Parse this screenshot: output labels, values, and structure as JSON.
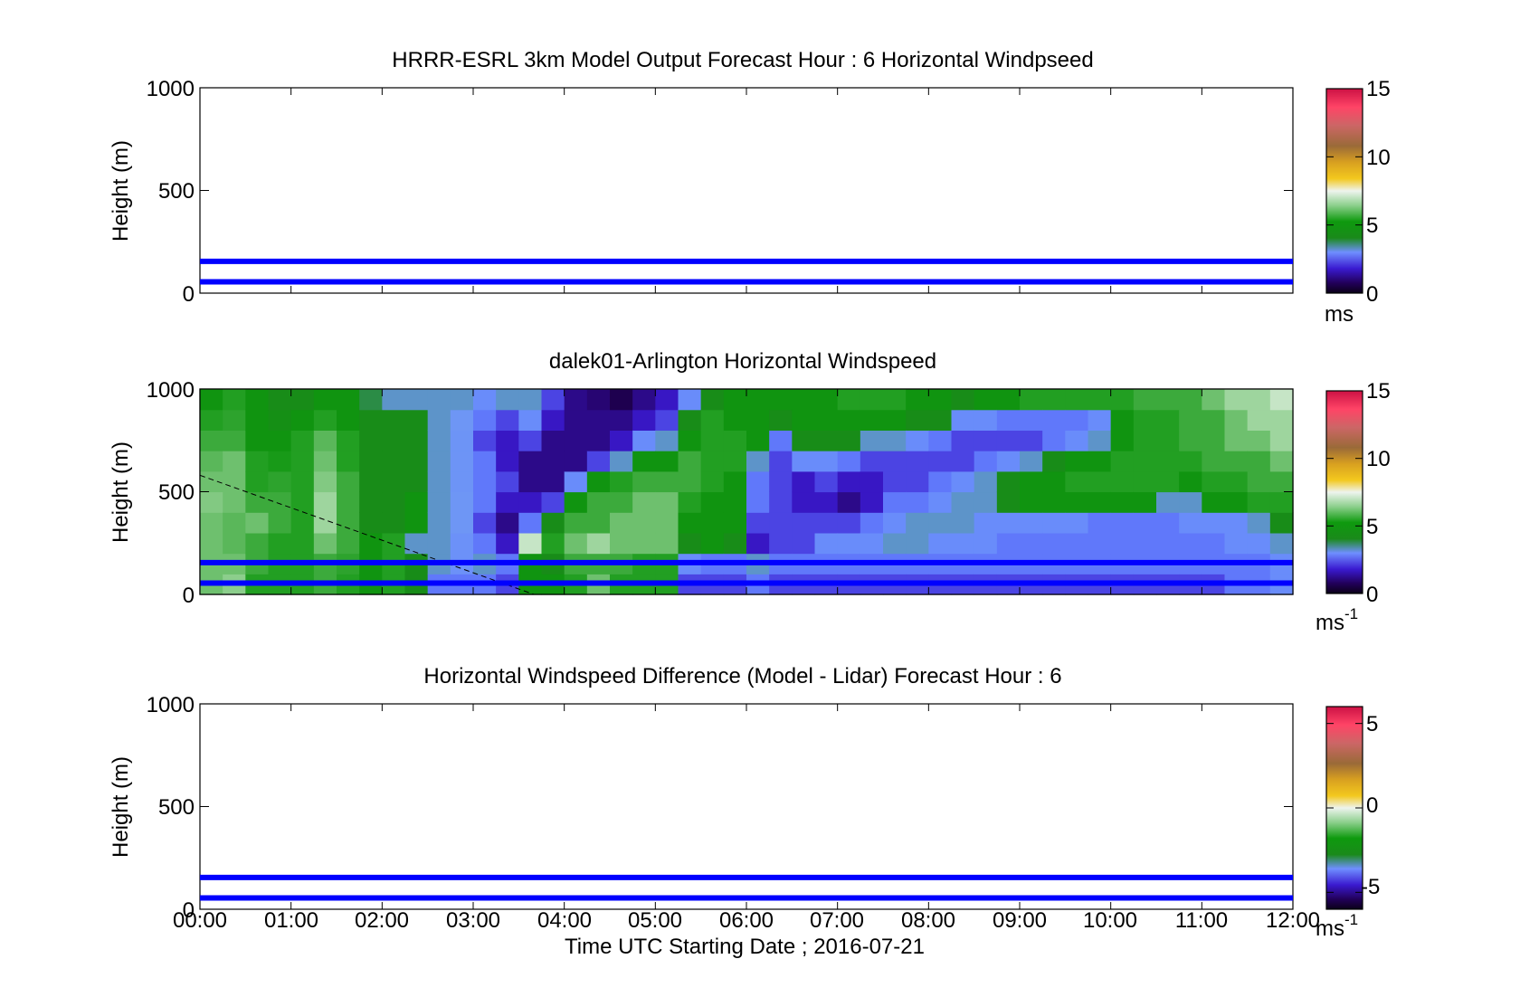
{
  "figure": {
    "xlabel": "Time UTC  Starting Date ; 2016-07-21",
    "time_ticks": [
      "00:00",
      "01:00",
      "02:00",
      "03:00",
      "04:00",
      "05:00",
      "06:00",
      "07:00",
      "08:00",
      "09:00",
      "10:00",
      "11:00",
      "12:00"
    ]
  },
  "chart_data": [
    {
      "type": "heatmap",
      "title": "HRRR-ESRL 3km Model Output   Forecast Hour : 6 Horizontal Windpseed",
      "ylabel": "Height (m)",
      "ylim": [
        0,
        1000
      ],
      "yticks": [
        "0",
        "500",
        "1000"
      ],
      "xlim": [
        "00:00",
        "12:00"
      ],
      "reference_lines_m": [
        55,
        155
      ],
      "reference_line_color": "#0000ff",
      "colorbar": {
        "range": [
          0,
          15
        ],
        "ticks": [
          "0",
          "5",
          "10",
          "15"
        ],
        "unit": "ms",
        "unit_sup": ""
      },
      "values": []
    },
    {
      "type": "heatmap",
      "title": "dalek01-Arlington  Horizontal Windspeed",
      "ylabel": "Height (m)",
      "ylim": [
        0,
        1000
      ],
      "yticks": [
        "0",
        "500",
        "1000"
      ],
      "xlim": [
        "00:00",
        "12:00"
      ],
      "reference_lines_m": [
        55,
        155
      ],
      "reference_line_color": "#0000ff",
      "dashed_line": {
        "from": [
          "00:00",
          580
        ],
        "to": [
          "03:40",
          0
        ]
      },
      "colorbar": {
        "range": [
          0,
          15
        ],
        "ticks": [
          "0",
          "5",
          "10",
          "15"
        ],
        "unit": "ms",
        "unit_sup": "-1"
      },
      "time_hours": [
        0.0,
        0.25,
        0.5,
        0.75,
        1.0,
        1.25,
        1.5,
        1.75,
        2.0,
        2.25,
        2.5,
        2.75,
        3.0,
        3.25,
        3.5,
        3.75,
        4.0,
        4.25,
        4.5,
        4.75,
        5.0,
        5.25,
        5.5,
        5.75,
        6.0,
        6.25,
        6.5,
        6.75,
        7.0,
        7.25,
        7.5,
        7.75,
        8.0,
        8.25,
        8.5,
        8.75,
        9.0,
        9.25,
        9.5,
        9.75,
        10.0,
        10.25,
        10.5,
        10.75,
        11.0,
        11.25,
        11.5,
        11.75
      ],
      "height_m": [
        0,
        100,
        200,
        300,
        400,
        500,
        600,
        700,
        800,
        900
      ],
      "speed_ms": [
        [
          6.0,
          6.0,
          6.0,
          6.0,
          6.2,
          6.0,
          5.8,
          5.5,
          5.0,
          4.5
        ],
        [
          6.3,
          6.0,
          5.8,
          5.8,
          6.0,
          6.0,
          6.0,
          5.5,
          5.2,
          5.0
        ],
        [
          5.0,
          5.5,
          5.5,
          6.0,
          5.5,
          5.0,
          5.0,
          4.5,
          4.5,
          4.5
        ],
        [
          5.0,
          5.0,
          5.0,
          5.5,
          5.5,
          5.2,
          4.8,
          4.5,
          4.2,
          4.0
        ],
        [
          5.0,
          5.0,
          5.0,
          5.0,
          5.0,
          5.0,
          5.0,
          5.0,
          4.5,
          4.0
        ],
        [
          5.5,
          5.5,
          6.0,
          6.5,
          6.5,
          6.2,
          6.0,
          5.8,
          5.0,
          4.5
        ],
        [
          5.0,
          5.2,
          5.5,
          5.5,
          5.5,
          5.5,
          5.0,
          5.0,
          4.5,
          4.5
        ],
        [
          4.5,
          4.5,
          4.5,
          4.0,
          4.0,
          4.0,
          4.0,
          4.0,
          4.0,
          3.8
        ],
        [
          5.0,
          5.0,
          5.0,
          4.0,
          4.0,
          4.0,
          4.0,
          4.0,
          4.0,
          3.5
        ],
        [
          4.0,
          4.0,
          3.5,
          4.5,
          4.5,
          4.0,
          4.0,
          4.0,
          4.0,
          3.5
        ],
        [
          2.5,
          3.5,
          3.5,
          3.5,
          3.5,
          3.5,
          3.5,
          3.5,
          3.5,
          3.5
        ],
        [
          2.5,
          3.2,
          3.2,
          3.4,
          3.4,
          3.3,
          3.3,
          3.3,
          3.4,
          3.5
        ],
        [
          2.5,
          3.5,
          2.5,
          2.0,
          2.5,
          2.5,
          2.5,
          2.0,
          2.5,
          3.0
        ],
        [
          2.0,
          2.5,
          1.5,
          1.0,
          1.5,
          2.0,
          1.5,
          1.5,
          2.0,
          3.5
        ],
        [
          4.5,
          4.5,
          7.0,
          2.5,
          1.5,
          1.0,
          1.0,
          2.0,
          3.0,
          3.5
        ],
        [
          4.5,
          4.0,
          5.0,
          4.0,
          2.0,
          1.0,
          1.0,
          1.0,
          1.5,
          2.0
        ],
        [
          5.0,
          5.5,
          6.0,
          5.5,
          4.5,
          3.0,
          1.0,
          1.0,
          1.0,
          1.0
        ],
        [
          6.0,
          5.5,
          6.5,
          5.5,
          5.5,
          4.5,
          2.0,
          1.0,
          1.0,
          0.8
        ],
        [
          5.0,
          5.5,
          6.0,
          6.0,
          5.5,
          5.0,
          3.5,
          1.5,
          1.0,
          0.5
        ],
        [
          5.0,
          5.0,
          6.0,
          6.0,
          6.0,
          5.5,
          4.5,
          3.0,
          1.5,
          1.0
        ],
        [
          5.0,
          5.0,
          6.0,
          6.0,
          6.0,
          5.5,
          4.5,
          3.5,
          2.0,
          1.5
        ],
        [
          2.0,
          3.0,
          4.0,
          4.5,
          5.0,
          5.5,
          5.5,
          4.5,
          4.0,
          3.0
        ],
        [
          2.0,
          2.5,
          4.5,
          4.5,
          4.5,
          5.0,
          5.0,
          5.0,
          5.0,
          4.0
        ],
        [
          2.0,
          2.5,
          4.0,
          4.5,
          4.5,
          4.5,
          5.0,
          5.0,
          4.5,
          4.5
        ],
        [
          2.5,
          3.5,
          1.5,
          2.0,
          2.5,
          2.5,
          3.5,
          4.5,
          4.5,
          4.5
        ],
        [
          2.0,
          2.5,
          2.0,
          2.0,
          2.0,
          2.0,
          2.0,
          2.5,
          4.0,
          4.5
        ],
        [
          2.0,
          2.5,
          2.0,
          2.0,
          1.5,
          1.5,
          3.0,
          4.0,
          4.5,
          4.5
        ],
        [
          2.0,
          2.5,
          3.0,
          2.0,
          1.5,
          2.0,
          3.0,
          4.0,
          4.5,
          4.5
        ],
        [
          2.0,
          2.5,
          3.0,
          2.0,
          1.0,
          1.5,
          2.5,
          4.0,
          4.5,
          5.0
        ],
        [
          2.0,
          2.5,
          3.0,
          2.5,
          1.5,
          1.5,
          2.0,
          3.5,
          4.5,
          5.0
        ],
        [
          2.0,
          2.5,
          3.5,
          3.0,
          2.5,
          2.0,
          2.0,
          3.5,
          4.5,
          5.0
        ],
        [
          2.0,
          2.5,
          3.5,
          3.5,
          2.5,
          2.0,
          2.0,
          3.0,
          4.0,
          4.5
        ],
        [
          2.0,
          2.5,
          3.0,
          3.5,
          3.0,
          2.5,
          2.0,
          2.5,
          4.0,
          4.5
        ],
        [
          2.0,
          2.5,
          3.0,
          3.5,
          3.5,
          3.0,
          2.0,
          2.0,
          3.0,
          4.0
        ],
        [
          2.0,
          2.5,
          3.0,
          3.0,
          3.5,
          3.5,
          2.5,
          2.0,
          3.0,
          4.5
        ],
        [
          2.0,
          2.5,
          2.5,
          3.0,
          4.0,
          4.0,
          3.0,
          2.0,
          2.5,
          4.5
        ],
        [
          2.0,
          2.5,
          2.5,
          3.0,
          4.5,
          4.5,
          3.5,
          2.0,
          2.5,
          5.0
        ],
        [
          2.0,
          2.5,
          2.5,
          3.0,
          4.5,
          4.5,
          4.0,
          2.5,
          2.5,
          5.0
        ],
        [
          2.0,
          2.5,
          2.5,
          3.0,
          4.5,
          5.0,
          4.5,
          3.0,
          2.5,
          5.0
        ],
        [
          2.0,
          2.5,
          2.5,
          2.5,
          4.5,
          5.0,
          4.5,
          3.5,
          3.0,
          5.0
        ],
        [
          2.0,
          2.5,
          2.5,
          2.5,
          4.5,
          5.0,
          5.0,
          4.5,
          4.5,
          5.0
        ],
        [
          2.0,
          2.5,
          2.5,
          2.5,
          4.5,
          5.0,
          5.0,
          5.0,
          5.0,
          5.5
        ],
        [
          2.0,
          2.5,
          2.5,
          2.5,
          3.5,
          5.0,
          5.0,
          5.0,
          5.0,
          5.5
        ],
        [
          2.0,
          2.5,
          2.5,
          3.0,
          3.5,
          4.5,
          5.0,
          5.5,
          5.5,
          5.5
        ],
        [
          2.0,
          2.5,
          2.5,
          3.0,
          4.5,
          5.0,
          5.5,
          5.5,
          5.5,
          6.0
        ],
        [
          2.5,
          2.5,
          3.0,
          3.0,
          4.5,
          5.0,
          5.5,
          6.0,
          6.0,
          6.5
        ],
        [
          2.5,
          2.5,
          3.0,
          3.5,
          5.0,
          5.5,
          5.5,
          6.0,
          6.5,
          6.5
        ],
        [
          3.0,
          3.0,
          3.5,
          4.0,
          5.0,
          5.5,
          6.0,
          6.5,
          6.5,
          7.0
        ]
      ]
    },
    {
      "type": "heatmap",
      "title": "Horizontal Windspeed Difference (Model - Lidar) Forecast Hour : 6",
      "ylabel": "Height (m)",
      "ylim": [
        0,
        1000
      ],
      "yticks": [
        "0",
        "500",
        "1000"
      ],
      "xlim": [
        "00:00",
        "12:00"
      ],
      "reference_lines_m": [
        55,
        155
      ],
      "reference_line_color": "#0000ff",
      "colorbar": {
        "range": [
          -6,
          6
        ],
        "ticks": [
          "-5",
          "0",
          "5"
        ],
        "unit": "ms",
        "unit_sup": "-1"
      },
      "values": []
    }
  ]
}
